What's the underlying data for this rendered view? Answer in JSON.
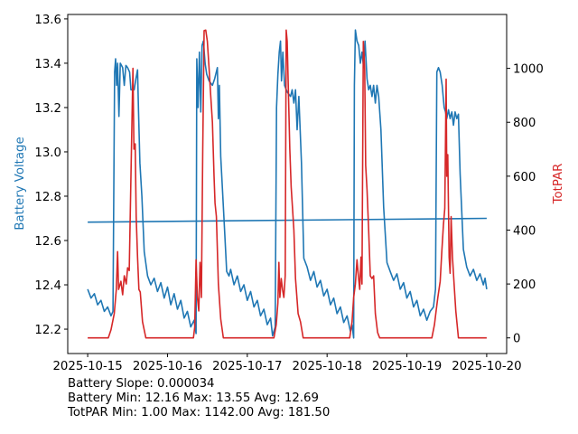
{
  "chart_data": {
    "type": "line",
    "x_unit": "hours since 2025-10-15 00:00",
    "xlim": [
      -6,
      126
    ],
    "x_ticks": [
      {
        "value": 0,
        "label": "2025-10-15"
      },
      {
        "value": 24,
        "label": "2025-10-16"
      },
      {
        "value": 48,
        "label": "2025-10-17"
      },
      {
        "value": 72,
        "label": "2025-10-18"
      },
      {
        "value": 96,
        "label": "2025-10-19"
      },
      {
        "value": 120,
        "label": "2025-10-20"
      }
    ],
    "left_axis": {
      "label": "Battery Voltage",
      "color": "#1f77b4",
      "ylim": [
        12.09,
        13.62
      ],
      "ticks": [
        {
          "value": 12.2,
          "label": "12.2"
        },
        {
          "value": 12.4,
          "label": "12.4"
        },
        {
          "value": 12.6,
          "label": "12.6"
        },
        {
          "value": 12.8,
          "label": "12.8"
        },
        {
          "value": 13.0,
          "label": "13.0"
        },
        {
          "value": 13.2,
          "label": "13.2"
        },
        {
          "value": 13.4,
          "label": "13.4"
        },
        {
          "value": 13.6,
          "label": "13.6"
        }
      ]
    },
    "right_axis": {
      "label": "TotPAR",
      "color": "#d62728",
      "ylim": [
        -58,
        1200
      ],
      "ticks": [
        {
          "value": 0,
          "label": "0"
        },
        {
          "value": 200,
          "label": "200"
        },
        {
          "value": 400,
          "label": "400"
        },
        {
          "value": 600,
          "label": "600"
        },
        {
          "value": 800,
          "label": "800"
        },
        {
          "value": 1000,
          "label": "1000"
        }
      ]
    },
    "grid": false,
    "series": [
      {
        "name": "Battery Voltage",
        "axis": "left",
        "color": "#1f77b4",
        "points": [
          [
            0,
            12.38
          ],
          [
            1,
            12.34
          ],
          [
            2,
            12.36
          ],
          [
            3,
            12.31
          ],
          [
            4,
            12.33
          ],
          [
            5,
            12.28
          ],
          [
            6,
            12.3
          ],
          [
            7,
            12.26
          ],
          [
            7.6,
            12.28
          ],
          [
            8.1,
            13.36
          ],
          [
            8.4,
            13.42
          ],
          [
            8.7,
            13.3
          ],
          [
            9,
            13.4
          ],
          [
            9.4,
            13.16
          ],
          [
            9.8,
            13.4
          ],
          [
            10.5,
            13.38
          ],
          [
            11,
            13.3
          ],
          [
            11.5,
            13.39
          ],
          [
            12,
            13.38
          ],
          [
            12.6,
            13.36
          ],
          [
            13,
            13.28
          ],
          [
            14,
            13.28
          ],
          [
            14.5,
            13.33
          ],
          [
            15,
            13.37
          ],
          [
            15.3,
            13.18
          ],
          [
            15.7,
            12.95
          ],
          [
            16.3,
            12.8
          ],
          [
            17,
            12.55
          ],
          [
            18,
            12.44
          ],
          [
            19,
            12.4
          ],
          [
            20,
            12.43
          ],
          [
            21,
            12.37
          ],
          [
            22,
            12.41
          ],
          [
            23,
            12.34
          ],
          [
            24,
            12.39
          ],
          [
            25,
            12.31
          ],
          [
            26,
            12.36
          ],
          [
            27,
            12.29
          ],
          [
            28,
            12.33
          ],
          [
            29,
            12.25
          ],
          [
            30,
            12.28
          ],
          [
            31,
            12.21
          ],
          [
            32,
            12.24
          ],
          [
            32.6,
            12.18
          ],
          [
            32.8,
            13.42
          ],
          [
            33.2,
            13.2
          ],
          [
            33.6,
            13.45
          ],
          [
            34,
            13.18
          ],
          [
            34.4,
            13.48
          ],
          [
            34.8,
            13.5
          ],
          [
            35.3,
            13.4
          ],
          [
            35.8,
            13.35
          ],
          [
            36.5,
            13.32
          ],
          [
            37.5,
            13.3
          ],
          [
            38.2,
            13.33
          ],
          [
            39,
            13.38
          ],
          [
            39.3,
            13.15
          ],
          [
            39.6,
            13.3
          ],
          [
            40,
            12.98
          ],
          [
            41,
            12.7
          ],
          [
            41.8,
            12.46
          ],
          [
            42.5,
            12.44
          ],
          [
            43,
            12.47
          ],
          [
            44,
            12.4
          ],
          [
            45,
            12.44
          ],
          [
            46,
            12.37
          ],
          [
            47,
            12.4
          ],
          [
            48,
            12.33
          ],
          [
            49,
            12.37
          ],
          [
            50,
            12.3
          ],
          [
            51,
            12.33
          ],
          [
            52,
            12.26
          ],
          [
            53,
            12.29
          ],
          [
            54,
            12.22
          ],
          [
            55,
            12.25
          ],
          [
            55.6,
            12.17
          ],
          [
            56.4,
            12.21
          ],
          [
            56.8,
            13.2
          ],
          [
            57.2,
            13.35
          ],
          [
            57.6,
            13.45
          ],
          [
            58,
            13.5
          ],
          [
            58.3,
            13.32
          ],
          [
            58.7,
            13.45
          ],
          [
            59.2,
            13.3
          ],
          [
            60,
            13.27
          ],
          [
            61,
            13.25
          ],
          [
            61.5,
            13.28
          ],
          [
            62,
            13.22
          ],
          [
            62.5,
            13.28
          ],
          [
            63,
            13.1
          ],
          [
            63.5,
            13.25
          ],
          [
            64.3,
            12.95
          ],
          [
            65,
            12.52
          ],
          [
            66,
            12.48
          ],
          [
            67,
            12.42
          ],
          [
            68,
            12.46
          ],
          [
            69,
            12.39
          ],
          [
            70,
            12.42
          ],
          [
            71,
            12.35
          ],
          [
            72,
            12.38
          ],
          [
            73,
            12.31
          ],
          [
            74,
            12.34
          ],
          [
            75,
            12.27
          ],
          [
            76,
            12.3
          ],
          [
            77,
            12.23
          ],
          [
            78,
            12.26
          ],
          [
            79,
            12.19
          ],
          [
            79.5,
            12.22
          ],
          [
            80,
            12.16
          ],
          [
            80.2,
            13.3
          ],
          [
            80.5,
            13.55
          ],
          [
            81,
            13.5
          ],
          [
            81.5,
            13.48
          ],
          [
            82,
            13.4
          ],
          [
            82.5,
            13.45
          ],
          [
            83,
            13.38
          ],
          [
            83.4,
            13.5
          ],
          [
            84,
            13.33
          ],
          [
            84.5,
            13.28
          ],
          [
            85,
            13.3
          ],
          [
            85.5,
            13.25
          ],
          [
            86,
            13.3
          ],
          [
            86.5,
            13.22
          ],
          [
            87,
            13.3
          ],
          [
            87.5,
            13.25
          ],
          [
            88.2,
            13.1
          ],
          [
            89,
            12.75
          ],
          [
            90,
            12.5
          ],
          [
            91,
            12.46
          ],
          [
            92,
            12.42
          ],
          [
            93,
            12.45
          ],
          [
            94,
            12.38
          ],
          [
            95,
            12.41
          ],
          [
            96,
            12.34
          ],
          [
            97,
            12.37
          ],
          [
            98,
            12.3
          ],
          [
            99,
            12.33
          ],
          [
            100,
            12.26
          ],
          [
            101,
            12.29
          ],
          [
            102,
            12.24
          ],
          [
            103,
            12.28
          ],
          [
            104,
            12.3
          ],
          [
            104.6,
            12.38
          ],
          [
            105,
            13.36
          ],
          [
            105.5,
            13.38
          ],
          [
            106,
            13.36
          ],
          [
            106.6,
            13.3
          ],
          [
            107.2,
            13.2
          ],
          [
            107.6,
            13.18
          ],
          [
            108,
            13.15
          ],
          [
            108.5,
            13.19
          ],
          [
            109,
            13.15
          ],
          [
            109.5,
            13.18
          ],
          [
            110,
            13.12
          ],
          [
            110.5,
            13.18
          ],
          [
            111,
            13.15
          ],
          [
            111.5,
            13.17
          ],
          [
            112,
            12.9
          ],
          [
            113,
            12.56
          ],
          [
            114,
            12.48
          ],
          [
            115,
            12.44
          ],
          [
            116,
            12.47
          ],
          [
            117,
            12.42
          ],
          [
            118,
            12.45
          ],
          [
            119,
            12.4
          ],
          [
            119.5,
            12.43
          ],
          [
            120,
            12.38
          ]
        ]
      },
      {
        "name": "Battery Trend",
        "axis": "left",
        "color": "#1f77b4",
        "points": [
          [
            0,
            12.683
          ],
          [
            120,
            12.7
          ]
        ]
      },
      {
        "name": "TotPAR",
        "axis": "right",
        "color": "#d62728",
        "points": [
          [
            0,
            0
          ],
          [
            6.2,
            0
          ],
          [
            7,
            30
          ],
          [
            8,
            90
          ],
          [
            8.6,
            180
          ],
          [
            9,
            320
          ],
          [
            9.3,
            180
          ],
          [
            10,
            210
          ],
          [
            10.5,
            160
          ],
          [
            11,
            230
          ],
          [
            11.6,
            200
          ],
          [
            12,
            260
          ],
          [
            12.5,
            250
          ],
          [
            13,
            600
          ],
          [
            13.6,
            1000
          ],
          [
            13.9,
            700
          ],
          [
            14.3,
            720
          ],
          [
            14.6,
            450
          ],
          [
            15,
            300
          ],
          [
            15.4,
            180
          ],
          [
            15.8,
            170
          ],
          [
            16.5,
            60
          ],
          [
            17.5,
            0
          ],
          [
            31.8,
            0
          ],
          [
            32.2,
            40
          ],
          [
            32.6,
            290
          ],
          [
            33,
            150
          ],
          [
            33.4,
            100
          ],
          [
            33.8,
            280
          ],
          [
            34.2,
            150
          ],
          [
            34.6,
            700
          ],
          [
            35,
            1140
          ],
          [
            35.5,
            1142
          ],
          [
            36,
            1100
          ],
          [
            36.5,
            1000
          ],
          [
            37,
            900
          ],
          [
            37.5,
            800
          ],
          [
            38,
            600
          ],
          [
            38.3,
            500
          ],
          [
            38.7,
            450
          ],
          [
            39.3,
            200
          ],
          [
            40,
            70
          ],
          [
            40.8,
            0
          ],
          [
            56,
            0
          ],
          [
            56.7,
            50
          ],
          [
            57.2,
            130
          ],
          [
            57.5,
            280
          ],
          [
            57.8,
            150
          ],
          [
            58.2,
            220
          ],
          [
            58.6,
            180
          ],
          [
            59,
            150
          ],
          [
            59.4,
            230
          ],
          [
            59.7,
            1142
          ],
          [
            60,
            1100
          ],
          [
            60.5,
            850
          ],
          [
            60.8,
            700
          ],
          [
            61.2,
            560
          ],
          [
            61.6,
            480
          ],
          [
            62,
            400
          ],
          [
            62.5,
            220
          ],
          [
            63.3,
            90
          ],
          [
            64,
            60
          ],
          [
            64.8,
            0
          ],
          [
            78.8,
            0
          ],
          [
            79.5,
            60
          ],
          [
            80,
            150
          ],
          [
            80.5,
            200
          ],
          [
            81,
            290
          ],
          [
            81.4,
            230
          ],
          [
            81.8,
            180
          ],
          [
            82.2,
            300
          ],
          [
            82.5,
            200
          ],
          [
            82.9,
            1100
          ],
          [
            83.3,
            1000
          ],
          [
            83.6,
            640
          ],
          [
            84,
            550
          ],
          [
            84.5,
            400
          ],
          [
            85,
            230
          ],
          [
            85.5,
            220
          ],
          [
            86,
            230
          ],
          [
            86.5,
            90
          ],
          [
            87.2,
            20
          ],
          [
            87.8,
            0
          ],
          [
            103.5,
            0
          ],
          [
            104.3,
            50
          ],
          [
            104.8,
            100
          ],
          [
            105.3,
            150
          ],
          [
            106,
            210
          ],
          [
            106.5,
            320
          ],
          [
            107,
            420
          ],
          [
            107.4,
            480
          ],
          [
            107.8,
            960
          ],
          [
            108,
            600
          ],
          [
            108.3,
            680
          ],
          [
            108.7,
            300
          ],
          [
            109,
            240
          ],
          [
            109.3,
            450
          ],
          [
            109.7,
            300
          ],
          [
            110.2,
            200
          ],
          [
            110.7,
            100
          ],
          [
            111.5,
            0
          ],
          [
            120,
            0
          ]
        ]
      }
    ],
    "annotations": [
      "Battery Slope: 0.000034",
      "Battery Min: 12.16 Max: 13.55 Avg: 12.69",
      "TotPAR Min: 1.00 Max: 1142.00 Avg: 181.50"
    ]
  }
}
